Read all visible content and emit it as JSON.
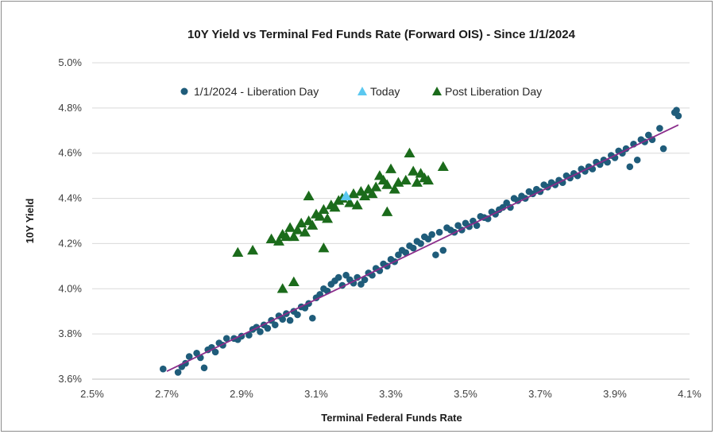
{
  "chart_data": {
    "type": "scatter",
    "title": "10Y Yield vs Terminal Fed Funds Rate (Forward OIS) - Since 1/1/2024",
    "xlabel": "Terminal Federal Funds Rate",
    "ylabel": "10Y Yield",
    "xlim": [
      2.5,
      4.1
    ],
    "ylim": [
      3.6,
      5.0
    ],
    "x_ticks": [
      "2.5%",
      "2.7%",
      "2.9%",
      "3.1%",
      "3.3%",
      "3.5%",
      "3.7%",
      "3.9%",
      "4.1%"
    ],
    "y_ticks": [
      "3.6%",
      "3.8%",
      "4.0%",
      "4.2%",
      "4.4%",
      "4.6%",
      "4.8%",
      "5.0%"
    ],
    "grid": "horizontal",
    "legend_position": "top-left",
    "trendline": {
      "series": "1/1/2024 - Liberation Day",
      "x": [
        2.7,
        4.07
      ],
      "y": [
        3.635,
        4.725
      ],
      "color": "#8B2D8B"
    },
    "series": [
      {
        "name": "1/1/2024 - Liberation Day",
        "marker": "circle",
        "color": "#1F5C7A",
        "points": [
          [
            2.69,
            3.645
          ],
          [
            2.73,
            3.63
          ],
          [
            2.74,
            3.655
          ],
          [
            2.75,
            3.67
          ],
          [
            2.76,
            3.7
          ],
          [
            2.78,
            3.715
          ],
          [
            2.79,
            3.695
          ],
          [
            2.8,
            3.65
          ],
          [
            2.81,
            3.73
          ],
          [
            2.82,
            3.74
          ],
          [
            2.83,
            3.72
          ],
          [
            2.84,
            3.76
          ],
          [
            2.85,
            3.75
          ],
          [
            2.86,
            3.78
          ],
          [
            2.88,
            3.78
          ],
          [
            2.89,
            3.775
          ],
          [
            2.9,
            3.79
          ],
          [
            2.92,
            3.795
          ],
          [
            2.93,
            3.82
          ],
          [
            2.94,
            3.83
          ],
          [
            2.95,
            3.81
          ],
          [
            2.96,
            3.84
          ],
          [
            2.97,
            3.825
          ],
          [
            2.98,
            3.86
          ],
          [
            2.99,
            3.84
          ],
          [
            3.0,
            3.88
          ],
          [
            3.01,
            3.865
          ],
          [
            3.02,
            3.89
          ],
          [
            3.03,
            3.86
          ],
          [
            3.04,
            3.9
          ],
          [
            3.05,
            3.885
          ],
          [
            3.06,
            3.92
          ],
          [
            3.07,
            3.915
          ],
          [
            3.08,
            3.935
          ],
          [
            3.09,
            3.87
          ],
          [
            3.1,
            3.96
          ],
          [
            3.11,
            3.975
          ],
          [
            3.12,
            4.0
          ],
          [
            3.13,
            3.99
          ],
          [
            3.14,
            4.02
          ],
          [
            3.15,
            4.035
          ],
          [
            3.16,
            4.05
          ],
          [
            3.17,
            4.015
          ],
          [
            3.18,
            4.06
          ],
          [
            3.19,
            4.04
          ],
          [
            3.2,
            4.025
          ],
          [
            3.21,
            4.05
          ],
          [
            3.22,
            4.02
          ],
          [
            3.23,
            4.04
          ],
          [
            3.24,
            4.07
          ],
          [
            3.25,
            4.06
          ],
          [
            3.26,
            4.09
          ],
          [
            3.27,
            4.08
          ],
          [
            3.28,
            4.11
          ],
          [
            3.29,
            4.1
          ],
          [
            3.3,
            4.13
          ],
          [
            3.31,
            4.12
          ],
          [
            3.32,
            4.15
          ],
          [
            3.33,
            4.17
          ],
          [
            3.34,
            4.16
          ],
          [
            3.35,
            4.19
          ],
          [
            3.36,
            4.18
          ],
          [
            3.37,
            4.21
          ],
          [
            3.38,
            4.2
          ],
          [
            3.39,
            4.23
          ],
          [
            3.4,
            4.22
          ],
          [
            3.41,
            4.24
          ],
          [
            3.42,
            4.15
          ],
          [
            3.43,
            4.25
          ],
          [
            3.44,
            4.17
          ],
          [
            3.45,
            4.27
          ],
          [
            3.46,
            4.26
          ],
          [
            3.47,
            4.25
          ],
          [
            3.48,
            4.28
          ],
          [
            3.49,
            4.26
          ],
          [
            3.5,
            4.29
          ],
          [
            3.51,
            4.275
          ],
          [
            3.52,
            4.3
          ],
          [
            3.53,
            4.28
          ],
          [
            3.54,
            4.32
          ],
          [
            3.55,
            4.315
          ],
          [
            3.56,
            4.31
          ],
          [
            3.57,
            4.34
          ],
          [
            3.58,
            4.33
          ],
          [
            3.59,
            4.35
          ],
          [
            3.6,
            4.36
          ],
          [
            3.61,
            4.38
          ],
          [
            3.62,
            4.36
          ],
          [
            3.63,
            4.4
          ],
          [
            3.64,
            4.39
          ],
          [
            3.65,
            4.41
          ],
          [
            3.66,
            4.4
          ],
          [
            3.67,
            4.43
          ],
          [
            3.68,
            4.42
          ],
          [
            3.69,
            4.44
          ],
          [
            3.7,
            4.43
          ],
          [
            3.71,
            4.46
          ],
          [
            3.72,
            4.45
          ],
          [
            3.73,
            4.47
          ],
          [
            3.74,
            4.46
          ],
          [
            3.75,
            4.48
          ],
          [
            3.76,
            4.47
          ],
          [
            3.77,
            4.5
          ],
          [
            3.78,
            4.49
          ],
          [
            3.79,
            4.51
          ],
          [
            3.8,
            4.5
          ],
          [
            3.81,
            4.53
          ],
          [
            3.82,
            4.52
          ],
          [
            3.83,
            4.54
          ],
          [
            3.84,
            4.53
          ],
          [
            3.85,
            4.56
          ],
          [
            3.86,
            4.55
          ],
          [
            3.87,
            4.57
          ],
          [
            3.88,
            4.56
          ],
          [
            3.89,
            4.59
          ],
          [
            3.9,
            4.58
          ],
          [
            3.91,
            4.61
          ],
          [
            3.92,
            4.6
          ],
          [
            3.93,
            4.62
          ],
          [
            3.94,
            4.54
          ],
          [
            3.95,
            4.64
          ],
          [
            3.96,
            4.57
          ],
          [
            3.97,
            4.66
          ],
          [
            3.98,
            4.65
          ],
          [
            3.99,
            4.68
          ],
          [
            4.0,
            4.66
          ],
          [
            4.02,
            4.71
          ],
          [
            4.03,
            4.62
          ],
          [
            4.06,
            4.78
          ],
          [
            4.065,
            4.79
          ],
          [
            4.07,
            4.765
          ]
        ]
      },
      {
        "name": "Today",
        "marker": "triangle",
        "color": "#5BC8F0",
        "points": [
          [
            3.18,
            4.41
          ]
        ]
      },
      {
        "name": "Post Liberation Day",
        "marker": "triangle",
        "color": "#1B6B1B",
        "points": [
          [
            2.89,
            4.16
          ],
          [
            2.93,
            4.17
          ],
          [
            2.98,
            4.22
          ],
          [
            3.0,
            4.21
          ],
          [
            3.01,
            4.24
          ],
          [
            3.02,
            4.23
          ],
          [
            3.03,
            4.27
          ],
          [
            3.04,
            4.23
          ],
          [
            3.05,
            4.26
          ],
          [
            3.06,
            4.29
          ],
          [
            3.07,
            4.25
          ],
          [
            3.08,
            4.3
          ],
          [
            3.09,
            4.28
          ],
          [
            3.1,
            4.33
          ],
          [
            3.11,
            4.32
          ],
          [
            3.12,
            4.35
          ],
          [
            3.13,
            4.31
          ],
          [
            3.14,
            4.37
          ],
          [
            3.15,
            4.36
          ],
          [
            3.16,
            4.39
          ],
          [
            3.17,
            4.4
          ],
          [
            3.19,
            4.38
          ],
          [
            3.2,
            4.42
          ],
          [
            3.21,
            4.37
          ],
          [
            3.22,
            4.43
          ],
          [
            3.23,
            4.41
          ],
          [
            3.24,
            4.44
          ],
          [
            3.25,
            4.42
          ],
          [
            3.26,
            4.45
          ],
          [
            3.27,
            4.5
          ],
          [
            3.28,
            4.48
          ],
          [
            3.29,
            4.46
          ],
          [
            3.3,
            4.53
          ],
          [
            3.31,
            4.44
          ],
          [
            3.32,
            4.47
          ],
          [
            3.34,
            4.48
          ],
          [
            3.35,
            4.6
          ],
          [
            3.36,
            4.52
          ],
          [
            3.37,
            4.47
          ],
          [
            3.38,
            4.51
          ],
          [
            3.39,
            4.49
          ],
          [
            3.4,
            4.48
          ],
          [
            3.44,
            4.54
          ],
          [
            3.08,
            4.41
          ],
          [
            3.01,
            4.0
          ],
          [
            3.04,
            4.03
          ],
          [
            3.12,
            4.18
          ],
          [
            3.29,
            4.34
          ]
        ]
      }
    ]
  }
}
